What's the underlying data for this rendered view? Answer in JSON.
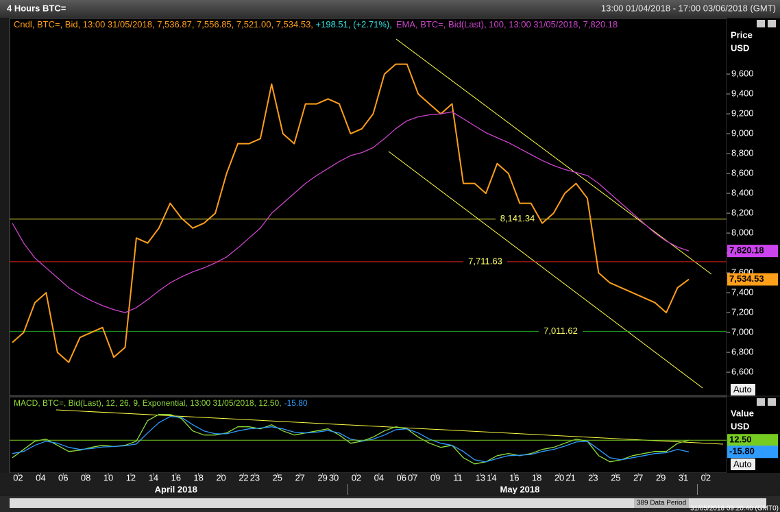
{
  "header": {
    "title": "4 Hours BTC=",
    "range": "13:00 01/04/2018 - 17:00 03/06/2018 (GMT)"
  },
  "status": {
    "data_period": "389 Data Period",
    "timestamp": "31/05/2018 09:20:40  (GMT0)"
  },
  "chart_data": [
    {
      "type": "line",
      "y_label": [
        "Price",
        "USD"
      ],
      "auto": "Auto",
      "change": "+198.51, (+2.71%),",
      "ylim": [
        6366,
        10159
      ],
      "yticks": [
        {
          "value": 6600,
          "label": "6,600"
        },
        {
          "value": 6800,
          "label": "6,800"
        },
        {
          "value": 7000,
          "label": "7,000"
        },
        {
          "value": 7200,
          "label": "7,200"
        },
        {
          "value": 7400,
          "label": "7,400"
        },
        {
          "value": 7600,
          "label": "7,600"
        },
        {
          "value": 7800,
          "label": "7,800"
        },
        {
          "value": 8000,
          "label": "8,000"
        },
        {
          "value": 8200,
          "label": "8,200"
        },
        {
          "value": 8400,
          "label": "8,400"
        },
        {
          "value": 8600,
          "label": "8,600"
        },
        {
          "value": 8800,
          "label": "8,800"
        },
        {
          "value": 9000,
          "label": "9,000"
        },
        {
          "value": 9200,
          "label": "9,200"
        },
        {
          "value": 9400,
          "label": "9,400"
        },
        {
          "value": 9600,
          "label": "9,600"
        }
      ],
      "series": [
        {
          "name": "Cndl, BTC=, Bid, 13:00 31/05/2018, 7,536.87, 7,556.85, 7,521.00, 7,534.53, ",
          "color": "#ff9f1a",
          "values": [
            6900,
            7000,
            7300,
            7400,
            6800,
            6700,
            6950,
            7000,
            7050,
            6750,
            6850,
            7950,
            7900,
            8050,
            8300,
            8150,
            8050,
            8100,
            8200,
            8600,
            8900,
            8900,
            8950,
            9500,
            9000,
            8900,
            9300,
            9300,
            9350,
            9300,
            9000,
            9050,
            9200,
            9600,
            9700,
            9700,
            9400,
            9300,
            9200,
            9300,
            8500,
            8500,
            8400,
            8700,
            8600,
            8300,
            8300,
            8100,
            8200,
            8400,
            8500,
            8350,
            7600,
            7500,
            7450,
            7400,
            7350,
            7300,
            7200,
            7450,
            7534.53,
            null,
            null,
            null
          ]
        },
        {
          "name": "EMA, BTC=, Bid(Last),  100, 13:00 31/05/2018, 7,820.18",
          "color": "#cc44cc",
          "values": [
            8100,
            7900,
            7750,
            7650,
            7550,
            7450,
            7380,
            7320,
            7270,
            7230,
            7200,
            7250,
            7330,
            7420,
            7500,
            7560,
            7610,
            7650,
            7700,
            7760,
            7850,
            7950,
            8050,
            8200,
            8300,
            8400,
            8500,
            8580,
            8650,
            8720,
            8780,
            8810,
            8860,
            8950,
            9050,
            9130,
            9170,
            9190,
            9200,
            9220,
            9150,
            9080,
            9010,
            8960,
            8910,
            8850,
            8790,
            8730,
            8680,
            8640,
            8610,
            8580,
            8500,
            8400,
            8300,
            8200,
            8100,
            8000,
            7920,
            7860,
            7820.18,
            null,
            null,
            null
          ]
        }
      ],
      "hlines": [
        {
          "value": 8141.34,
          "label": "8,141.34",
          "color": "#ffff44"
        },
        {
          "value": 7711.63,
          "label": "7,711.63",
          "color": "#dd2222"
        },
        {
          "value": 7011.62,
          "label": "7,011.62",
          "color": "#22aa22"
        }
      ],
      "markers": [
        {
          "value": 7820.18,
          "label": "7,820.18",
          "color": "#cc44ee"
        },
        {
          "value": 7534.53,
          "label": "7,534.53",
          "color": "#ff9f1a"
        }
      ]
    },
    {
      "type": "line",
      "y_label": [
        "Value",
        "USD"
      ],
      "auto": "Auto",
      "ylim": [
        -67,
        116
      ],
      "categories": [
        null,
        "02",
        null,
        "04",
        null,
        "06",
        null,
        "08",
        null,
        "10",
        null,
        "12",
        null,
        "14",
        null,
        "16",
        null,
        "18",
        null,
        "20",
        null,
        "22",
        "23",
        null,
        "25",
        null,
        "27",
        null,
        "29",
        "30",
        null,
        "02",
        null,
        "04",
        null,
        "06",
        "07",
        null,
        "09",
        null,
        "11",
        null,
        "13",
        "14",
        null,
        "16",
        null,
        "18",
        null,
        "20",
        "21",
        null,
        "23",
        null,
        "25",
        null,
        "27",
        null,
        "29",
        null,
        "31",
        null,
        "02",
        null
      ],
      "month_labels": [
        "April 2018",
        "May 2018"
      ],
      "series": [
        {
          "name": "MACD, BTC=, Bid(Last),  12, 26, 9, Exponential, 13:00 31/05/2018, 12.50,",
          "color": "#8fdc3c",
          "values": [
            -30,
            -10,
            10,
            15,
            0,
            -15,
            -12,
            -5,
            0,
            -3,
            0,
            10,
            60,
            75,
            75,
            65,
            35,
            25,
            25,
            30,
            45,
            45,
            40,
            50,
            35,
            25,
            30,
            35,
            40,
            25,
            5,
            10,
            20,
            35,
            45,
            40,
            20,
            5,
            -5,
            0,
            -30,
            -45,
            -40,
            -25,
            -20,
            -25,
            -20,
            -10,
            -5,
            5,
            15,
            10,
            -25,
            -40,
            -35,
            -25,
            -20,
            -15,
            -15,
            5,
            12.5,
            null,
            null,
            null
          ]
        },
        {
          "name": "-15.80",
          "color": "#2f9bff",
          "values": [
            -20,
            -15,
            0,
            10,
            5,
            -5,
            -10,
            -8,
            -4,
            -3,
            -1,
            3,
            30,
            55,
            70,
            68,
            50,
            35,
            28,
            28,
            35,
            40,
            42,
            45,
            40,
            32,
            30,
            32,
            36,
            30,
            15,
            10,
            15,
            25,
            38,
            40,
            30,
            15,
            5,
            0,
            -15,
            -35,
            -40,
            -32,
            -25,
            -24,
            -22,
            -15,
            -10,
            -2,
            8,
            10,
            -10,
            -30,
            -35,
            -30,
            -25,
            -20,
            -18,
            -10,
            -15.8,
            null,
            null,
            null
          ]
        }
      ],
      "markers": [
        {
          "value": 12.5,
          "label": "12.50",
          "color": "#77cc22",
          "line": true
        },
        {
          "value": -15.8,
          "label": "-15.80",
          "color": "#2f9bff",
          "line": false
        }
      ]
    }
  ]
}
